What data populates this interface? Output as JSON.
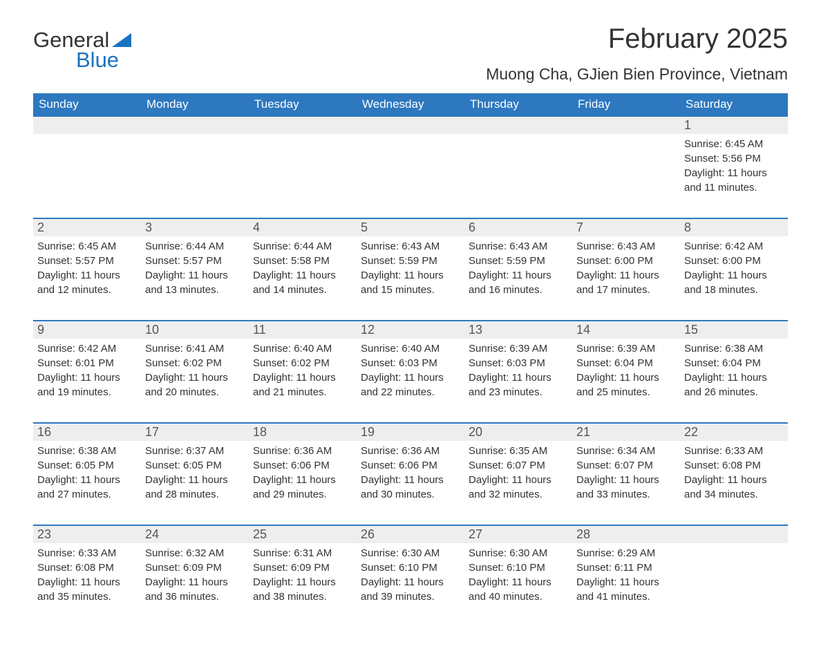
{
  "logo": {
    "word1": "General",
    "word2": "Blue",
    "triangle_color": "#1a72bf"
  },
  "title": "February 2025",
  "subtitle": "Muong Cha, GJien Bien Province, Vietnam",
  "colors": {
    "header_bg": "#2d78bf",
    "header_text": "#ffffff",
    "daynum_bg": "#eeeeee",
    "daynum_border": "#2d78bf",
    "body_text": "#333333",
    "page_bg": "#ffffff"
  },
  "day_headers": [
    "Sunday",
    "Monday",
    "Tuesday",
    "Wednesday",
    "Thursday",
    "Friday",
    "Saturday"
  ],
  "weeks": [
    [
      null,
      null,
      null,
      null,
      null,
      null,
      {
        "n": "1",
        "sr": "Sunrise: 6:45 AM",
        "ss": "Sunset: 5:56 PM",
        "dl1": "Daylight: 11 hours",
        "dl2": "and 11 minutes."
      }
    ],
    [
      {
        "n": "2",
        "sr": "Sunrise: 6:45 AM",
        "ss": "Sunset: 5:57 PM",
        "dl1": "Daylight: 11 hours",
        "dl2": "and 12 minutes."
      },
      {
        "n": "3",
        "sr": "Sunrise: 6:44 AM",
        "ss": "Sunset: 5:57 PM",
        "dl1": "Daylight: 11 hours",
        "dl2": "and 13 minutes."
      },
      {
        "n": "4",
        "sr": "Sunrise: 6:44 AM",
        "ss": "Sunset: 5:58 PM",
        "dl1": "Daylight: 11 hours",
        "dl2": "and 14 minutes."
      },
      {
        "n": "5",
        "sr": "Sunrise: 6:43 AM",
        "ss": "Sunset: 5:59 PM",
        "dl1": "Daylight: 11 hours",
        "dl2": "and 15 minutes."
      },
      {
        "n": "6",
        "sr": "Sunrise: 6:43 AM",
        "ss": "Sunset: 5:59 PM",
        "dl1": "Daylight: 11 hours",
        "dl2": "and 16 minutes."
      },
      {
        "n": "7",
        "sr": "Sunrise: 6:43 AM",
        "ss": "Sunset: 6:00 PM",
        "dl1": "Daylight: 11 hours",
        "dl2": "and 17 minutes."
      },
      {
        "n": "8",
        "sr": "Sunrise: 6:42 AM",
        "ss": "Sunset: 6:00 PM",
        "dl1": "Daylight: 11 hours",
        "dl2": "and 18 minutes."
      }
    ],
    [
      {
        "n": "9",
        "sr": "Sunrise: 6:42 AM",
        "ss": "Sunset: 6:01 PM",
        "dl1": "Daylight: 11 hours",
        "dl2": "and 19 minutes."
      },
      {
        "n": "10",
        "sr": "Sunrise: 6:41 AM",
        "ss": "Sunset: 6:02 PM",
        "dl1": "Daylight: 11 hours",
        "dl2": "and 20 minutes."
      },
      {
        "n": "11",
        "sr": "Sunrise: 6:40 AM",
        "ss": "Sunset: 6:02 PM",
        "dl1": "Daylight: 11 hours",
        "dl2": "and 21 minutes."
      },
      {
        "n": "12",
        "sr": "Sunrise: 6:40 AM",
        "ss": "Sunset: 6:03 PM",
        "dl1": "Daylight: 11 hours",
        "dl2": "and 22 minutes."
      },
      {
        "n": "13",
        "sr": "Sunrise: 6:39 AM",
        "ss": "Sunset: 6:03 PM",
        "dl1": "Daylight: 11 hours",
        "dl2": "and 23 minutes."
      },
      {
        "n": "14",
        "sr": "Sunrise: 6:39 AM",
        "ss": "Sunset: 6:04 PM",
        "dl1": "Daylight: 11 hours",
        "dl2": "and 25 minutes."
      },
      {
        "n": "15",
        "sr": "Sunrise: 6:38 AM",
        "ss": "Sunset: 6:04 PM",
        "dl1": "Daylight: 11 hours",
        "dl2": "and 26 minutes."
      }
    ],
    [
      {
        "n": "16",
        "sr": "Sunrise: 6:38 AM",
        "ss": "Sunset: 6:05 PM",
        "dl1": "Daylight: 11 hours",
        "dl2": "and 27 minutes."
      },
      {
        "n": "17",
        "sr": "Sunrise: 6:37 AM",
        "ss": "Sunset: 6:05 PM",
        "dl1": "Daylight: 11 hours",
        "dl2": "and 28 minutes."
      },
      {
        "n": "18",
        "sr": "Sunrise: 6:36 AM",
        "ss": "Sunset: 6:06 PM",
        "dl1": "Daylight: 11 hours",
        "dl2": "and 29 minutes."
      },
      {
        "n": "19",
        "sr": "Sunrise: 6:36 AM",
        "ss": "Sunset: 6:06 PM",
        "dl1": "Daylight: 11 hours",
        "dl2": "and 30 minutes."
      },
      {
        "n": "20",
        "sr": "Sunrise: 6:35 AM",
        "ss": "Sunset: 6:07 PM",
        "dl1": "Daylight: 11 hours",
        "dl2": "and 32 minutes."
      },
      {
        "n": "21",
        "sr": "Sunrise: 6:34 AM",
        "ss": "Sunset: 6:07 PM",
        "dl1": "Daylight: 11 hours",
        "dl2": "and 33 minutes."
      },
      {
        "n": "22",
        "sr": "Sunrise: 6:33 AM",
        "ss": "Sunset: 6:08 PM",
        "dl1": "Daylight: 11 hours",
        "dl2": "and 34 minutes."
      }
    ],
    [
      {
        "n": "23",
        "sr": "Sunrise: 6:33 AM",
        "ss": "Sunset: 6:08 PM",
        "dl1": "Daylight: 11 hours",
        "dl2": "and 35 minutes."
      },
      {
        "n": "24",
        "sr": "Sunrise: 6:32 AM",
        "ss": "Sunset: 6:09 PM",
        "dl1": "Daylight: 11 hours",
        "dl2": "and 36 minutes."
      },
      {
        "n": "25",
        "sr": "Sunrise: 6:31 AM",
        "ss": "Sunset: 6:09 PM",
        "dl1": "Daylight: 11 hours",
        "dl2": "and 38 minutes."
      },
      {
        "n": "26",
        "sr": "Sunrise: 6:30 AM",
        "ss": "Sunset: 6:10 PM",
        "dl1": "Daylight: 11 hours",
        "dl2": "and 39 minutes."
      },
      {
        "n": "27",
        "sr": "Sunrise: 6:30 AM",
        "ss": "Sunset: 6:10 PM",
        "dl1": "Daylight: 11 hours",
        "dl2": "and 40 minutes."
      },
      {
        "n": "28",
        "sr": "Sunrise: 6:29 AM",
        "ss": "Sunset: 6:11 PM",
        "dl1": "Daylight: 11 hours",
        "dl2": "and 41 minutes."
      },
      null
    ]
  ]
}
